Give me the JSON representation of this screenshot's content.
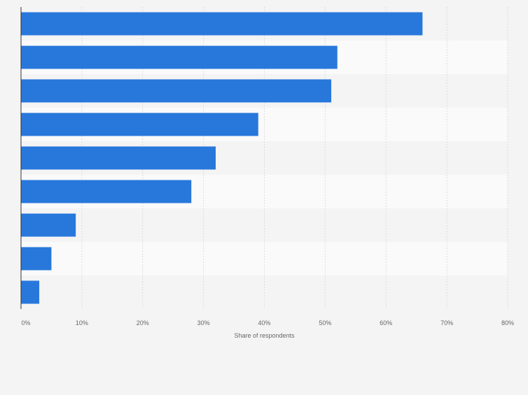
{
  "chart_data": {
    "type": "bar",
    "orientation": "horizontal",
    "title": "",
    "categories": [
      "",
      "",
      "",
      "",
      "",
      "",
      "",
      "",
      ""
    ],
    "values": [
      66,
      52,
      51,
      39,
      32,
      28,
      9,
      5,
      3
    ],
    "xlabel": "Share of respondents",
    "ylabel": "",
    "xlim": [
      0,
      80
    ],
    "x_ticks": [
      "0%",
      "10%",
      "20%",
      "30%",
      "40%",
      "50%",
      "60%",
      "70%",
      "80%"
    ],
    "grid": true,
    "legend": "none",
    "colors": {
      "bar": "#2878dc",
      "band_light": "#fafafa",
      "band_dark": "#f4f4f4",
      "grid": "#dcdcdc",
      "axis": "#333333",
      "tick_text": "#666666",
      "background": "#f4f4f4"
    }
  }
}
